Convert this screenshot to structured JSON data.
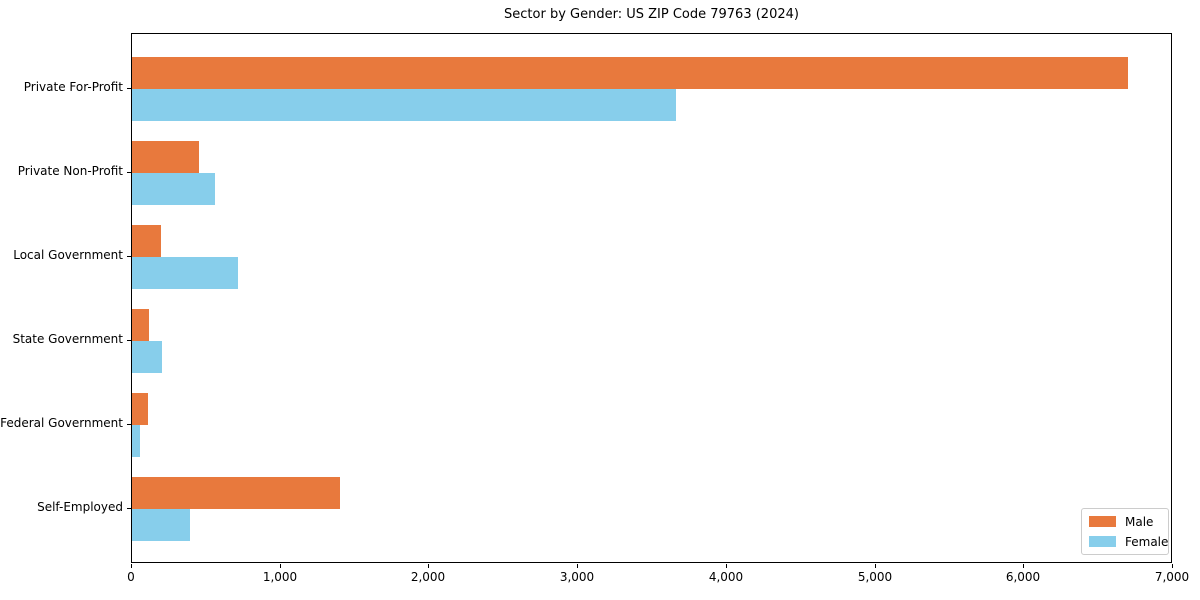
{
  "window": {
    "title": "Sector by Gender: US ZIP Code 79763 (2024)"
  },
  "chart_data": {
    "type": "bar",
    "orientation": "horizontal",
    "title": "Sector by Gender: US ZIP Code 79763 (2024)",
    "categories": [
      "Private For-Profit",
      "Private Non-Profit",
      "Local Government",
      "State Government",
      "Federal Government",
      "Self-Employed"
    ],
    "series": [
      {
        "name": "Male",
        "color": "#E8793D",
        "values": [
          6700,
          450,
          195,
          115,
          110,
          1400
        ]
      },
      {
        "name": "Female",
        "color": "#87CEEB",
        "values": [
          3660,
          555,
          715,
          200,
          55,
          390
        ]
      }
    ],
    "xlabel": "",
    "ylabel": "",
    "xlim": [
      0,
      7000
    ],
    "x_ticks": [
      0,
      1000,
      2000,
      3000,
      4000,
      5000,
      6000,
      7000
    ],
    "x_tick_labels": [
      "0",
      "1,000",
      "2,000",
      "3,000",
      "4,000",
      "5,000",
      "6,000",
      "7,000"
    ],
    "grid": false,
    "legend_position": "lower right",
    "colors": {
      "male": "#E8793D",
      "female": "#87CEEB",
      "spine": "#000000",
      "background": "#ffffff"
    }
  }
}
